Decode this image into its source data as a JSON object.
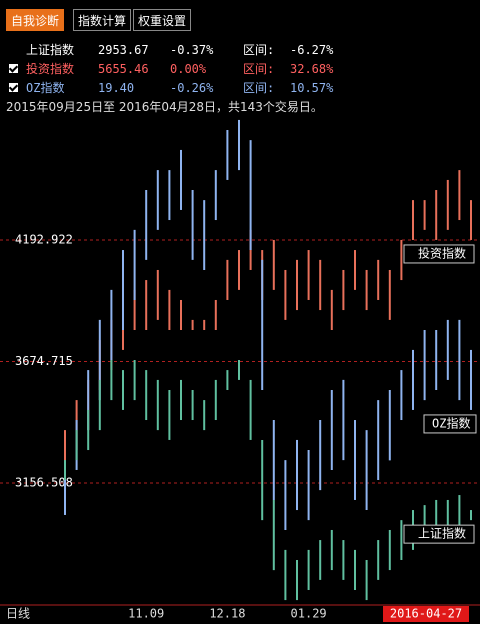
{
  "tabs": [
    "自我诊断",
    "指数计算",
    "权重设置"
  ],
  "summary": {
    "rows": [
      {
        "name": "上证指数",
        "value": "2953.67",
        "change": "-0.37%",
        "range_label": "区间:",
        "range": "-6.27%"
      },
      {
        "name": "投资指数",
        "value": "5655.46",
        "change": "0.00%",
        "range_label": "区间:",
        "range": "32.68%"
      },
      {
        "name": "OZ指数",
        "value": "19.40",
        "change": "-0.26%",
        "range_label": "区间:",
        "range": "10.57%"
      }
    ]
  },
  "period": "2015年09月25日至 2016年04月28日，共143个交易日。",
  "chart_data": {
    "type": "hlbar",
    "x_label": "日线",
    "categories": [
      null,
      null,
      null,
      null,
      null,
      null,
      null,
      "11.09",
      null,
      null,
      null,
      null,
      null,
      null,
      "12.18",
      null,
      null,
      null,
      null,
      null,
      null,
      "01.29",
      null,
      null,
      null,
      null,
      null,
      null,
      null,
      null,
      null,
      null,
      null,
      null,
      null,
      "2016-04-27"
    ],
    "ylim": [
      2636,
      4790
    ],
    "yticks": [
      4192.922,
      3674.715,
      3156.508
    ],
    "series": [
      {
        "name": "投资指数",
        "color": "#e8705a",
        "high": [
          3382,
          3510,
          3596,
          3766,
          3852,
          3937,
          3980,
          4022,
          4065,
          3980,
          3937,
          3852,
          3852,
          3937,
          4108,
          4150,
          4236,
          4150,
          4193,
          4065,
          4108,
          4150,
          4108,
          3980,
          4065,
          4150,
          4065,
          4108,
          4065,
          4193,
          4363,
          4363,
          4406,
          4449,
          4491,
          4363
        ],
        "low": [
          3212,
          3297,
          3382,
          3553,
          3638,
          3724,
          3809,
          3809,
          3852,
          3809,
          3809,
          3809,
          3809,
          3809,
          3937,
          3980,
          4065,
          3937,
          3980,
          3852,
          3894,
          3937,
          3894,
          3809,
          3894,
          3980,
          3894,
          3937,
          3852,
          4022,
          4193,
          4236,
          4193,
          4236,
          4278,
          4193
        ]
      },
      {
        "name": "OZ指数",
        "color": "#8fb4f0",
        "high": [
          3212,
          3425,
          3638,
          3852,
          3980,
          4150,
          4236,
          4406,
          4491,
          4491,
          4577,
          4406,
          4363,
          4491,
          4662,
          4705,
          4619,
          4108,
          3425,
          3254,
          3340,
          3297,
          3425,
          3553,
          3596,
          3425,
          3382,
          3510,
          3553,
          3638,
          3724,
          3809,
          3809,
          3852,
          3852,
          3724
        ],
        "low": [
          3020,
          3212,
          3382,
          3510,
          3681,
          3809,
          3937,
          4108,
          4236,
          4278,
          4321,
          4108,
          4065,
          4278,
          4449,
          4491,
          4150,
          3553,
          3084,
          2956,
          3041,
          2998,
          3126,
          3212,
          3254,
          3084,
          3041,
          3169,
          3253,
          3425,
          3468,
          3510,
          3553,
          3596,
          3510,
          3468
        ]
      },
      {
        "name": "上证指数",
        "color": "#60c0a0",
        "high": [
          3254,
          3382,
          3468,
          3596,
          3681,
          3638,
          3681,
          3638,
          3596,
          3553,
          3596,
          3553,
          3510,
          3596,
          3638,
          3681,
          3596,
          3340,
          3084,
          2871,
          2828,
          2871,
          2913,
          2956,
          2913,
          2871,
          2828,
          2913,
          2956,
          2998,
          3041,
          3062,
          3084,
          3084,
          3105,
          3041
        ],
        "low": [
          3169,
          3254,
          3297,
          3382,
          3510,
          3468,
          3510,
          3425,
          3382,
          3340,
          3425,
          3425,
          3382,
          3425,
          3553,
          3596,
          3340,
          2998,
          2785,
          2657,
          2657,
          2700,
          2743,
          2785,
          2743,
          2700,
          2657,
          2743,
          2785,
          2828,
          2871,
          2913,
          2956,
          2956,
          2977,
          2998
        ]
      }
    ]
  }
}
